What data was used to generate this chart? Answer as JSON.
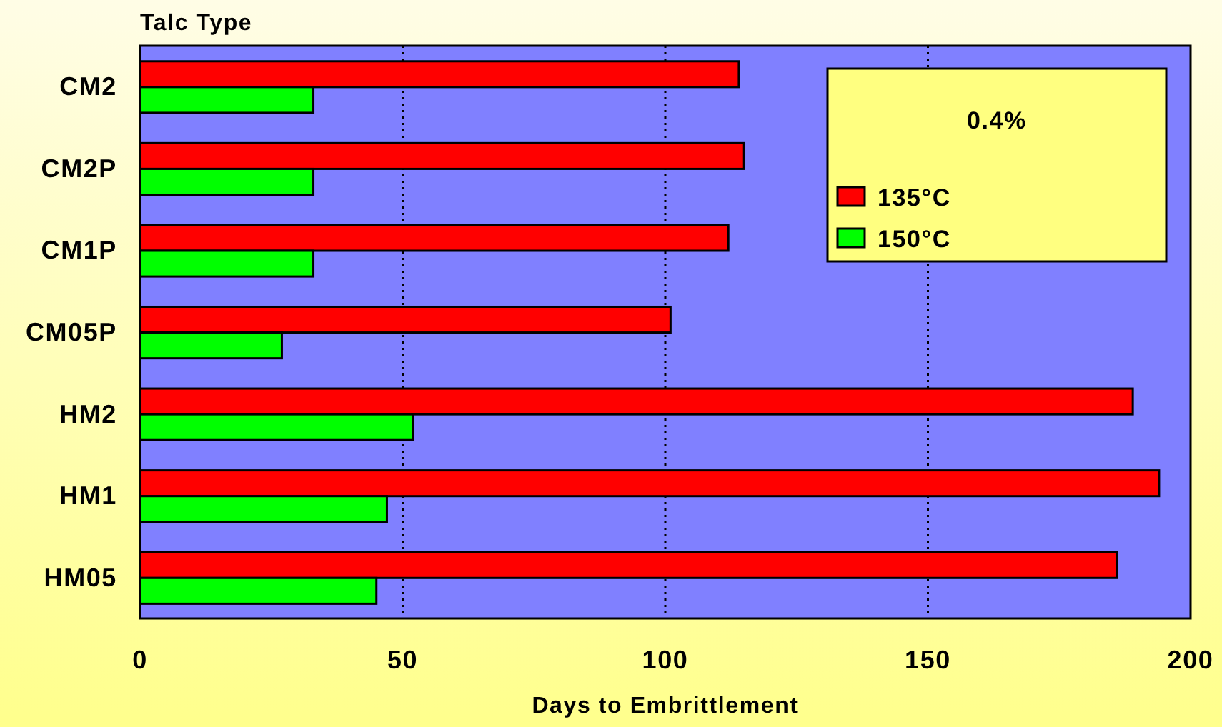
{
  "chart_data": {
    "type": "bar",
    "orientation": "horizontal",
    "ylabel": "Talc Type",
    "xlabel": "Days to Embrittlement",
    "legend_title": "0.4%",
    "categories": [
      "CM2",
      "CM2P",
      "CM1P",
      "CM05P",
      "HM2",
      "HM1",
      "HM05"
    ],
    "series": [
      {
        "name": "135°C",
        "color": "#ff0000",
        "values": [
          114,
          115,
          112,
          101,
          189,
          194,
          186
        ]
      },
      {
        "name": "150°C",
        "color": "#00ff00",
        "values": [
          33,
          33,
          33,
          27,
          52,
          47,
          45
        ]
      }
    ],
    "xlim": [
      0,
      200
    ],
    "xticks": [
      0,
      50,
      100,
      150,
      200
    ],
    "grid": "x",
    "legend": "top right"
  }
}
